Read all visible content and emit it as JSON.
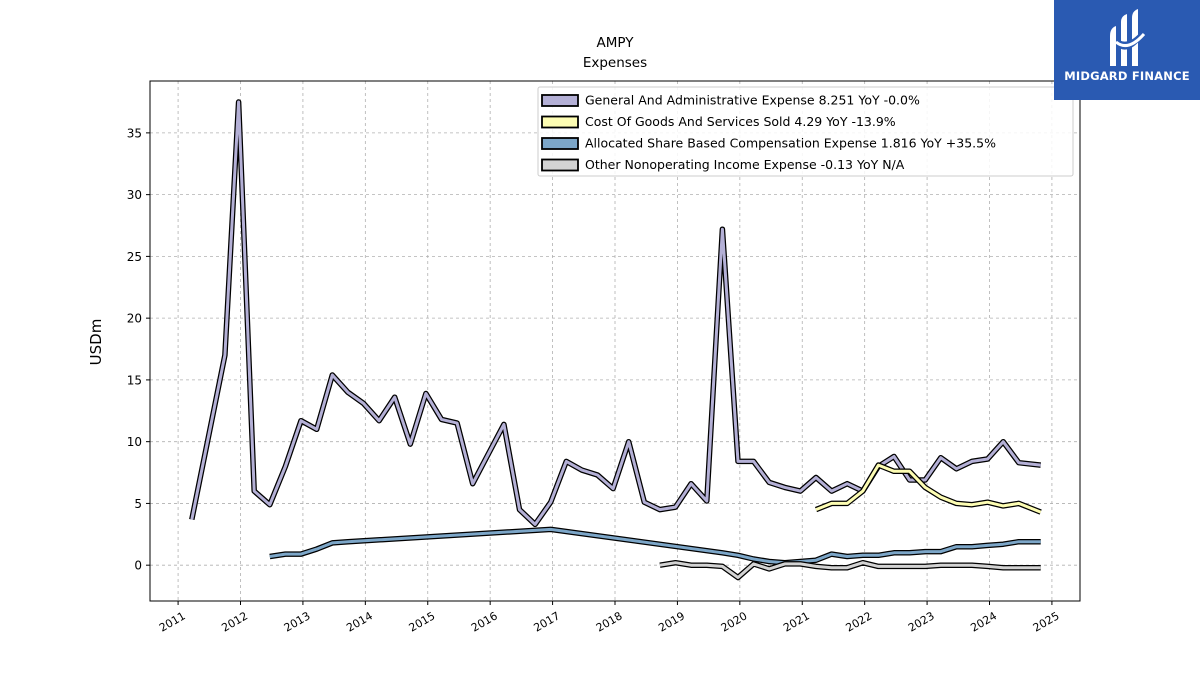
{
  "chart_data": {
    "type": "line",
    "title": "AMPY",
    "subtitle": "Expenses",
    "ylabel": "USDm",
    "xlabel": "",
    "xlim": [
      2010.55,
      2025.45
    ],
    "ylim": [
      -2.9,
      39.2
    ],
    "grid": true,
    "legend_position": "top-right",
    "x_ticks": [
      2011,
      2012,
      2013,
      2014,
      2015,
      2016,
      2017,
      2018,
      2019,
      2020,
      2021,
      2022,
      2023,
      2024,
      2025
    ],
    "x_tick_labels": [
      "2011",
      "2012",
      "2013",
      "2014",
      "2015",
      "2016",
      "2017",
      "2018",
      "2019",
      "2020",
      "2021",
      "2022",
      "2023",
      "2024",
      "2025"
    ],
    "y_ticks": [
      0,
      5,
      10,
      15,
      20,
      25,
      30,
      35
    ],
    "y_tick_labels": [
      "0",
      "5",
      "10",
      "15",
      "20",
      "25",
      "30",
      "35"
    ],
    "series": [
      {
        "name": "General And Administrative Expense",
        "legend_label": "General And Administrative Expense  8.251 YoY -0.0%",
        "color": "#b4b0d6",
        "x": [
          2011.22,
          2011.75,
          2011.97,
          2012.22,
          2012.47,
          2012.72,
          2012.97,
          2013.22,
          2013.47,
          2013.72,
          2013.97,
          2014.22,
          2014.47,
          2014.72,
          2014.97,
          2015.22,
          2015.47,
          2015.72,
          2015.97,
          2016.22,
          2016.47,
          2016.72,
          2016.97,
          2017.22,
          2017.47,
          2017.72,
          2017.97,
          2018.22,
          2018.47,
          2018.72,
          2018.97,
          2019.22,
          2019.47,
          2019.72,
          2019.97,
          2020.22,
          2020.47,
          2020.72,
          2020.97,
          2021.22,
          2021.47,
          2021.72,
          2021.97,
          2022.22,
          2022.47,
          2022.72,
          2022.97,
          2023.22,
          2023.47,
          2023.72,
          2023.97,
          2024.22,
          2024.47,
          2024.82
        ],
        "values": [
          3.7,
          17.0,
          37.5,
          6.0,
          4.9,
          8.0,
          11.7,
          11.0,
          15.4,
          14.0,
          13.1,
          11.7,
          13.6,
          9.8,
          13.9,
          11.8,
          11.5,
          6.6,
          9.0,
          11.4,
          4.5,
          3.3,
          5.1,
          8.4,
          7.7,
          7.3,
          6.2,
          10.0,
          5.1,
          4.5,
          4.7,
          6.6,
          5.2,
          27.2,
          8.4,
          8.4,
          6.7,
          6.3,
          6.0,
          7.1,
          6.0,
          6.6,
          6.0,
          8.0,
          8.8,
          6.9,
          6.9,
          8.7,
          7.8,
          8.4,
          8.6,
          10.0,
          8.3,
          8.1
        ]
      },
      {
        "name": "Cost Of Goods And Services Sold",
        "legend_label": "Cost Of Goods And Services Sold  4.29 YoY -13.9%",
        "color": "#fdfdb3",
        "x": [
          2021.22,
          2021.47,
          2021.72,
          2021.97,
          2022.22,
          2022.47,
          2022.72,
          2022.97,
          2023.22,
          2023.47,
          2023.72,
          2023.97,
          2024.22,
          2024.47,
          2024.82
        ],
        "values": [
          4.5,
          5.0,
          5.0,
          6.0,
          8.1,
          7.6,
          7.6,
          6.3,
          5.5,
          5.0,
          4.9,
          5.1,
          4.8,
          5.0,
          4.3
        ]
      },
      {
        "name": "Allocated Share Based Compensation Expense",
        "legend_label": "Allocated Share Based Compensation Expense  1.816 YoY +35.5%",
        "color": "#7ca6c8",
        "x": [
          2012.47,
          2012.72,
          2012.97,
          2013.22,
          2013.47,
          2013.72,
          2016.97,
          2019.72,
          2019.97,
          2020.22,
          2020.47,
          2020.72,
          2020.97,
          2021.22,
          2021.47,
          2021.72,
          2021.97,
          2022.22,
          2022.47,
          2022.72,
          2022.97,
          2023.22,
          2023.47,
          2023.72,
          2023.97,
          2024.22,
          2024.47,
          2024.82
        ],
        "values": [
          0.7,
          0.9,
          0.9,
          1.3,
          1.8,
          1.9,
          2.9,
          1.0,
          0.8,
          0.5,
          0.3,
          0.2,
          0.3,
          0.4,
          0.9,
          0.7,
          0.8,
          0.8,
          1.0,
          1.0,
          1.1,
          1.1,
          1.5,
          1.5,
          1.6,
          1.7,
          1.9,
          1.9
        ]
      },
      {
        "name": "Other Nonoperating Income Expense",
        "legend_label": "Other Nonoperating Income Expense  -0.13 YoY N/A",
        "color": "#d3d3d3",
        "x": [
          2018.72,
          2018.97,
          2019.22,
          2019.47,
          2019.72,
          2019.97,
          2020.22,
          2020.47,
          2020.72,
          2020.97,
          2021.22,
          2021.47,
          2021.72,
          2021.97,
          2022.22,
          2022.47,
          2022.72,
          2022.97,
          2023.22,
          2023.47,
          2023.72,
          2023.97,
          2024.22,
          2024.47,
          2024.82
        ],
        "values": [
          0.0,
          0.2,
          0.0,
          0.0,
          -0.1,
          -1.0,
          0.1,
          -0.3,
          0.1,
          0.1,
          -0.1,
          -0.2,
          -0.2,
          0.2,
          -0.1,
          -0.1,
          -0.1,
          -0.1,
          0.0,
          0.0,
          0.0,
          -0.1,
          -0.2,
          -0.2,
          -0.2
        ]
      }
    ]
  },
  "logo": {
    "text": "MIDGARD FINANCE",
    "background": "#2a5ab2"
  }
}
